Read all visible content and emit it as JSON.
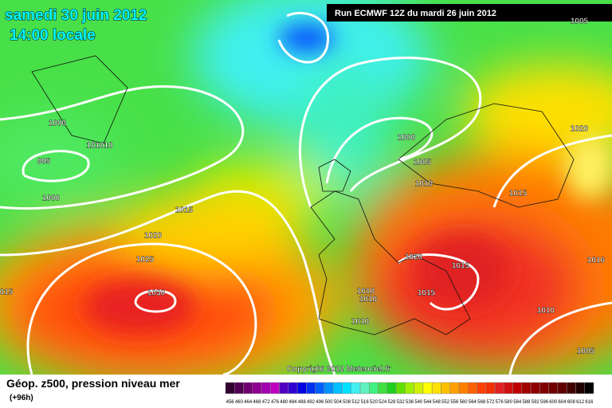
{
  "header": {
    "date": "samedi 30 juin 2012",
    "time": "14:00 locale",
    "run": "Run ECMWF 12Z du mardi 26 juin 2012"
  },
  "copyright": "Copyright 2012 Meteociel.fr",
  "footer": {
    "title": "Géop. z500, pression niveau mer",
    "lead": "(+96h)"
  },
  "isobars": [
    "1005",
    "1000",
    "101010",
    "995",
    "1000",
    "1015",
    "1020",
    "1025",
    "1030",
    "015",
    "1000",
    "1005",
    "1010",
    "1015",
    "1020",
    "1020",
    "1015",
    "1015",
    "1010",
    "1010",
    "1010",
    "1010",
    "1005",
    "1016"
  ],
  "scale": {
    "labels": [
      456,
      460,
      464,
      468,
      472,
      476,
      480,
      484,
      488,
      492,
      496,
      500,
      504,
      508,
      512,
      516,
      520,
      524,
      528,
      532,
      536,
      540,
      544,
      548,
      552,
      556,
      560,
      564,
      568,
      572,
      576,
      580,
      584,
      588,
      592,
      596,
      600,
      604,
      608,
      612,
      616
    ],
    "colors": [
      "#300030",
      "#500050",
      "#700070",
      "#900090",
      "#a000b0",
      "#c000c0",
      "#5000c0",
      "#3000d0",
      "#0000e0",
      "#0030f0",
      "#0060ff",
      "#0090ff",
      "#00c0ff",
      "#00e0ff",
      "#40f0f0",
      "#60f0c0",
      "#40f080",
      "#40e040",
      "#20d020",
      "#60e000",
      "#a0f000",
      "#d0f000",
      "#ffff00",
      "#ffe000",
      "#ffc000",
      "#ffa000",
      "#ff8000",
      "#ff6000",
      "#ff4000",
      "#f03000",
      "#e02020",
      "#d01010",
      "#c00000",
      "#a00000",
      "#900000",
      "#800000",
      "#700000",
      "#600000",
      "#400000",
      "#200000",
      "#000000"
    ]
  }
}
